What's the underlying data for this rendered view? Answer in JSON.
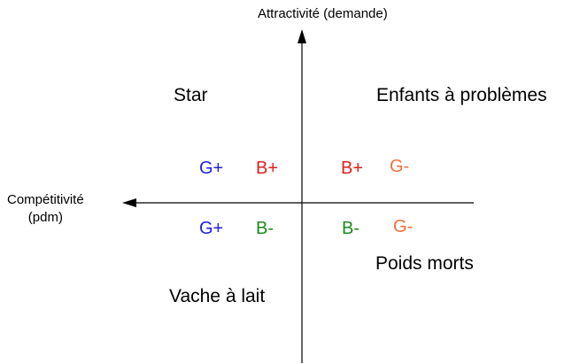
{
  "axes": {
    "y_label": "Attractivité (demande)",
    "x_label_line1": "Compétitivité",
    "x_label_line2": "(pdm)"
  },
  "quadrants": {
    "top_left": "Star",
    "top_right": "Enfants à problèmes",
    "bottom_right": "Poids morts",
    "bottom_left": "Vache à lait"
  },
  "codes": {
    "top_left": [
      {
        "text": "G+",
        "color": "#1f1fe0"
      },
      {
        "text": "B+",
        "color": "#e01f1f"
      }
    ],
    "top_right": [
      {
        "text": "B+",
        "color": "#e01f1f"
      },
      {
        "text": "G-",
        "color": "#f07040"
      }
    ],
    "bottom_left": [
      {
        "text": "G+",
        "color": "#1f1fe0"
      },
      {
        "text": "B-",
        "color": "#1a8a1a"
      }
    ],
    "bottom_right": [
      {
        "text": "B-",
        "color": "#1a8a1a"
      },
      {
        "text": "G-",
        "color": "#f07040"
      }
    ]
  }
}
